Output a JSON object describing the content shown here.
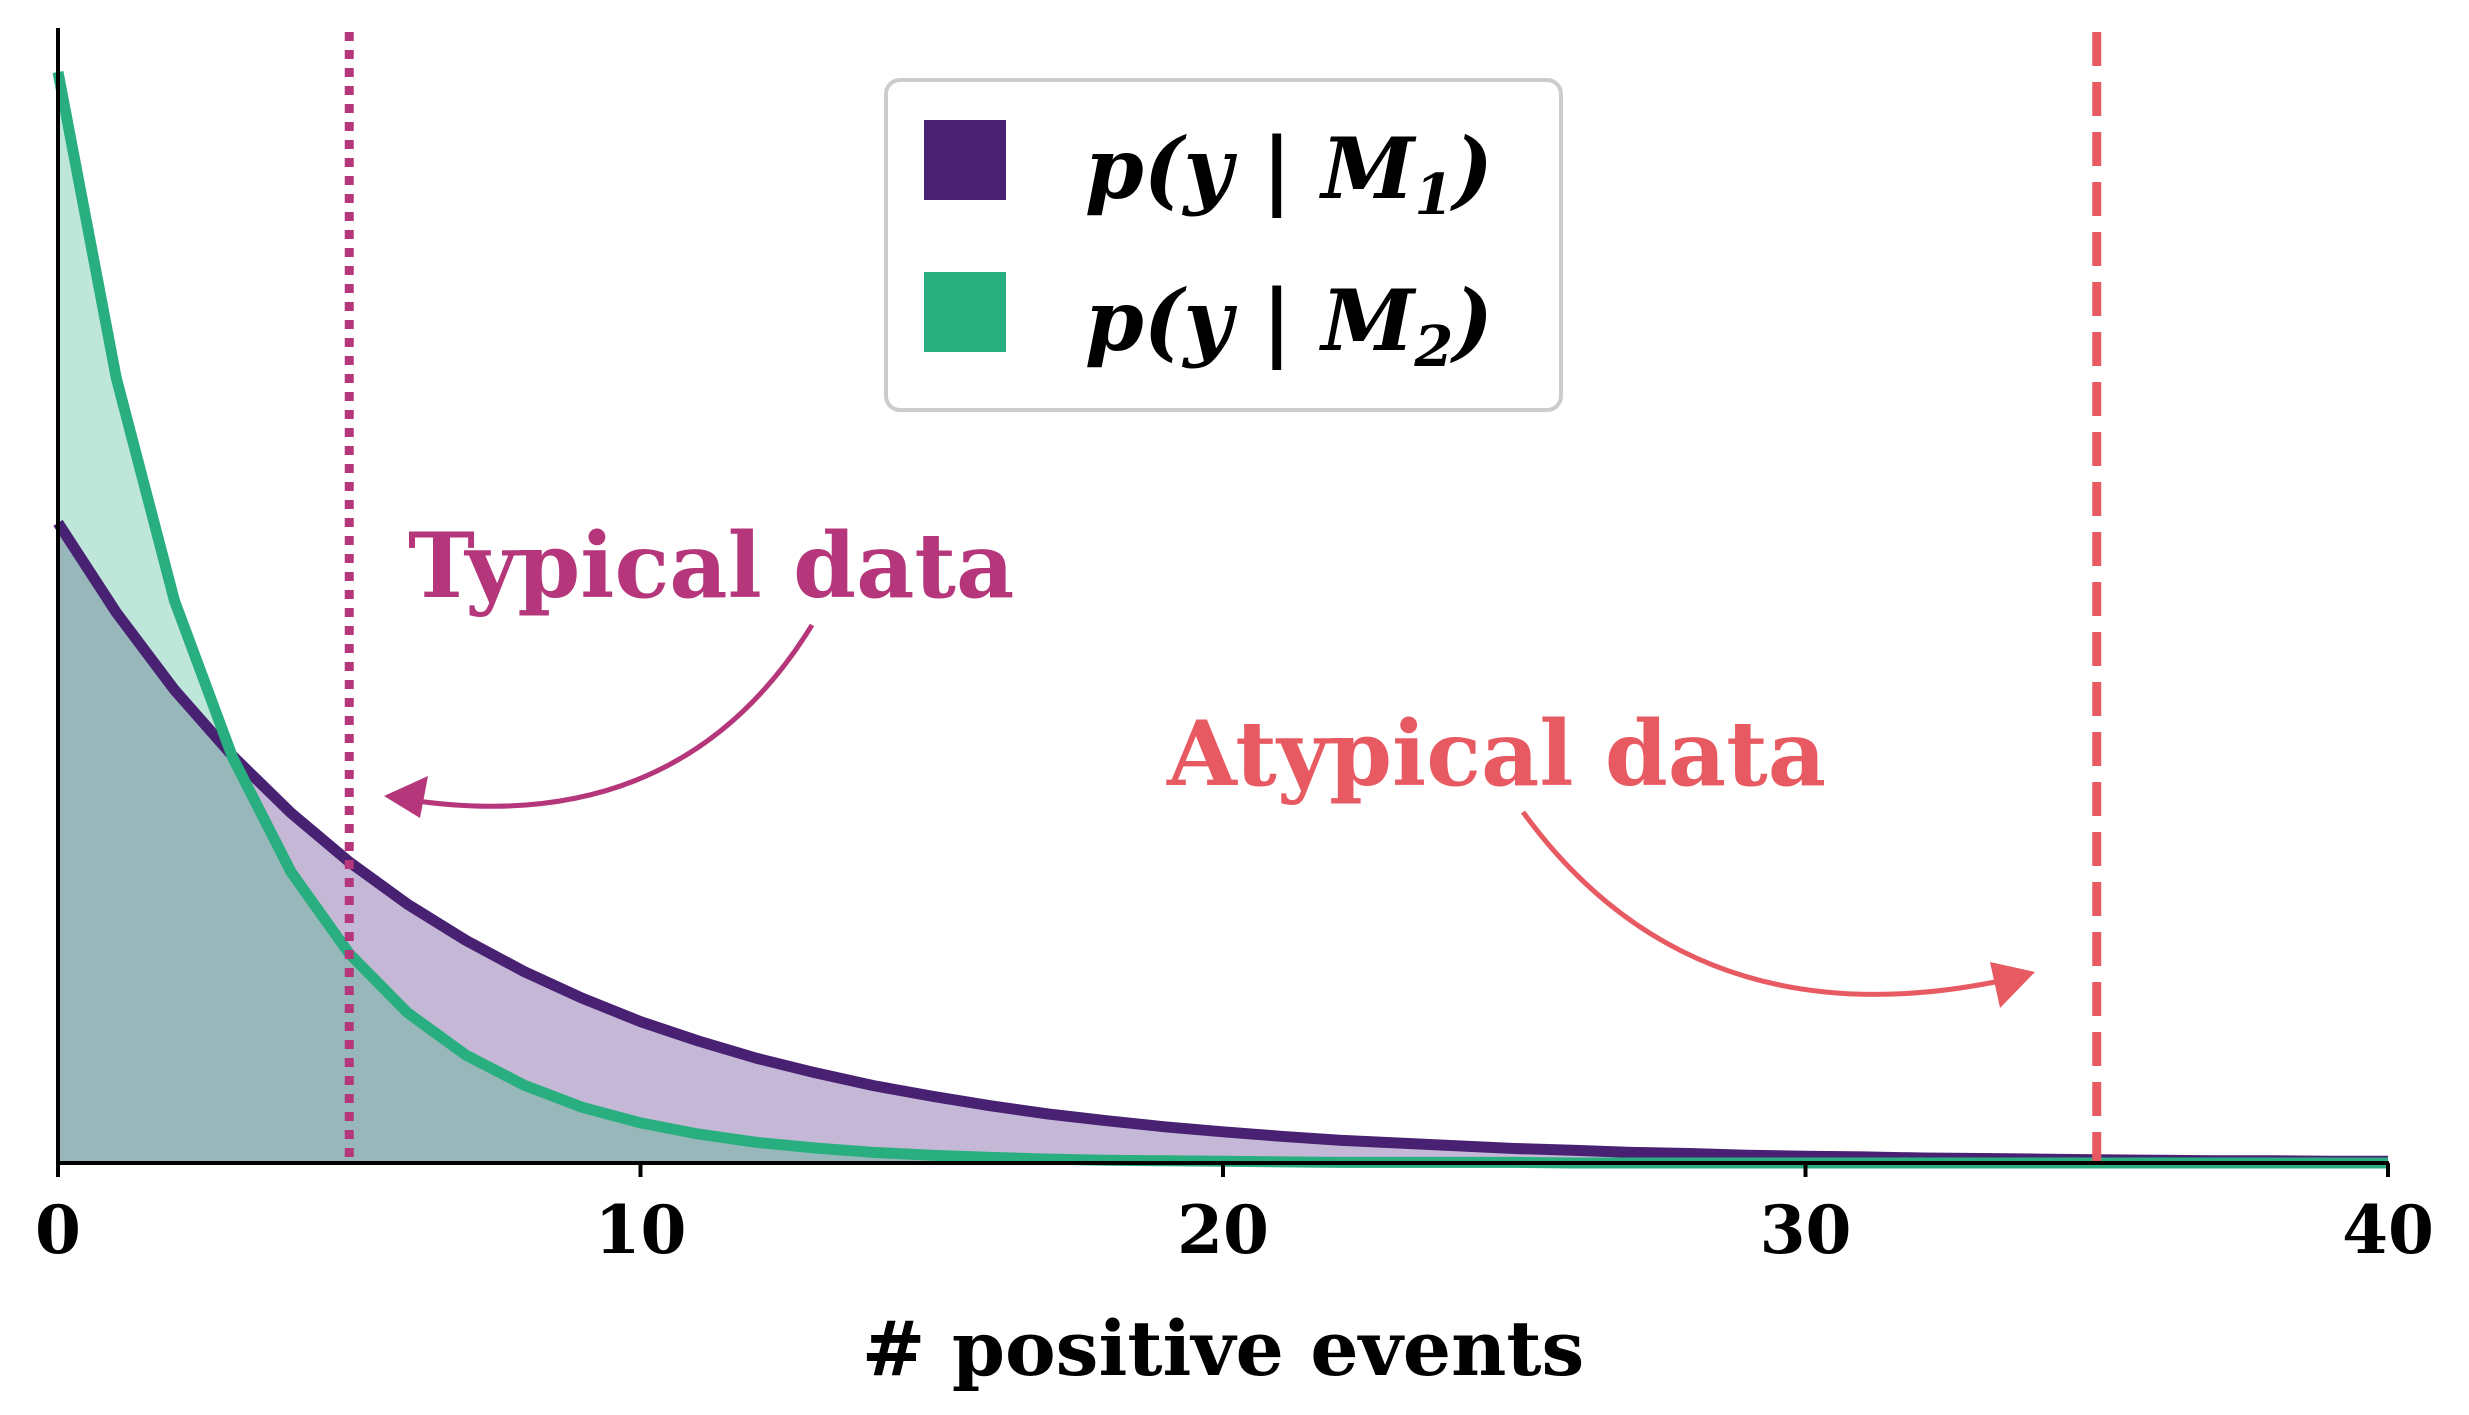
{
  "chart_data": {
    "type": "area",
    "xlabel": "# positive events",
    "ylabel": "",
    "xlim": [
      0,
      40
    ],
    "ylim": [
      0,
      0.196
    ],
    "x_ticks": [
      "0",
      "10",
      "20",
      "30",
      "40"
    ],
    "y_ticks_shown": false,
    "grid": false,
    "legend": {
      "placement": "top-center",
      "entries": [
        {
          "prefix": "p(y | M",
          "sub": "1",
          "suffix": ")"
        },
        {
          "prefix": "p(y | M",
          "sub": "2",
          "suffix": ")"
        }
      ]
    },
    "series": [
      {
        "color": "#482173",
        "fill_color": "#c5b7d6",
        "x": [
          0,
          1,
          2,
          3,
          4,
          5,
          6,
          7,
          8,
          9,
          10,
          11,
          12,
          13,
          14,
          15,
          16,
          17,
          18,
          19,
          20,
          21,
          22,
          23,
          24,
          25,
          26,
          27,
          28,
          29,
          30,
          31,
          32,
          33,
          34,
          35,
          36,
          37,
          38,
          39,
          40
        ],
        "values": [
          0.115,
          0.0989,
          0.085,
          0.0731,
          0.0629,
          0.0541,
          0.0465,
          0.04,
          0.0344,
          0.0296,
          0.0254,
          0.0219,
          0.0188,
          0.0162,
          0.0139,
          0.012,
          0.0103,
          0.0088,
          0.0076,
          0.0065,
          0.0056,
          0.0048,
          0.0041,
          0.0036,
          0.0031,
          0.0026,
          0.0023,
          0.0019,
          0.0017,
          0.0014,
          0.0012,
          0.0011,
          0.0009,
          0.0008,
          0.0007,
          0.0006,
          0.0005,
          0.0004,
          0.0004,
          0.0003,
          0.0003
        ]
      },
      {
        "color": "#29af7f",
        "fill_color": "#bfe7d9",
        "x": [
          0,
          1,
          2,
          3,
          4,
          5,
          6,
          7,
          8,
          9,
          10,
          11,
          12,
          13,
          14,
          15,
          16,
          17,
          18,
          19,
          20,
          21,
          22,
          23,
          24,
          25,
          26,
          27,
          28,
          29,
          30,
          31,
          32,
          33,
          34,
          35,
          36,
          37,
          38,
          39,
          40
        ],
        "values": [
          0.196,
          0.141,
          0.101,
          0.0728,
          0.0523,
          0.0376,
          0.027,
          0.0194,
          0.014,
          0.01,
          0.0072,
          0.0052,
          0.0037,
          0.0027,
          0.0019,
          0.0014,
          0.001,
          0.0007,
          0.0005,
          0.0004,
          0.0003,
          0.0002,
          0.0001,
          0.0001,
          0.0001,
          0.0001,
          0,
          0,
          0,
          0,
          0,
          0,
          0,
          0,
          0,
          0,
          0,
          0,
          0,
          0,
          0
        ]
      }
    ],
    "vlines": [
      {
        "x": 5,
        "style": "dotted",
        "color": "#b5367a"
      },
      {
        "x": 35,
        "style": "dashed",
        "color": "#e85a62"
      }
    ],
    "annotations": [
      {
        "text": "Typical data",
        "color": "#b5367a",
        "points_to_x": 5
      },
      {
        "text": "Atypical data",
        "color": "#e85a62",
        "points_to_x": 35
      }
    ],
    "overlap_fill_color": "#97b7ba"
  }
}
